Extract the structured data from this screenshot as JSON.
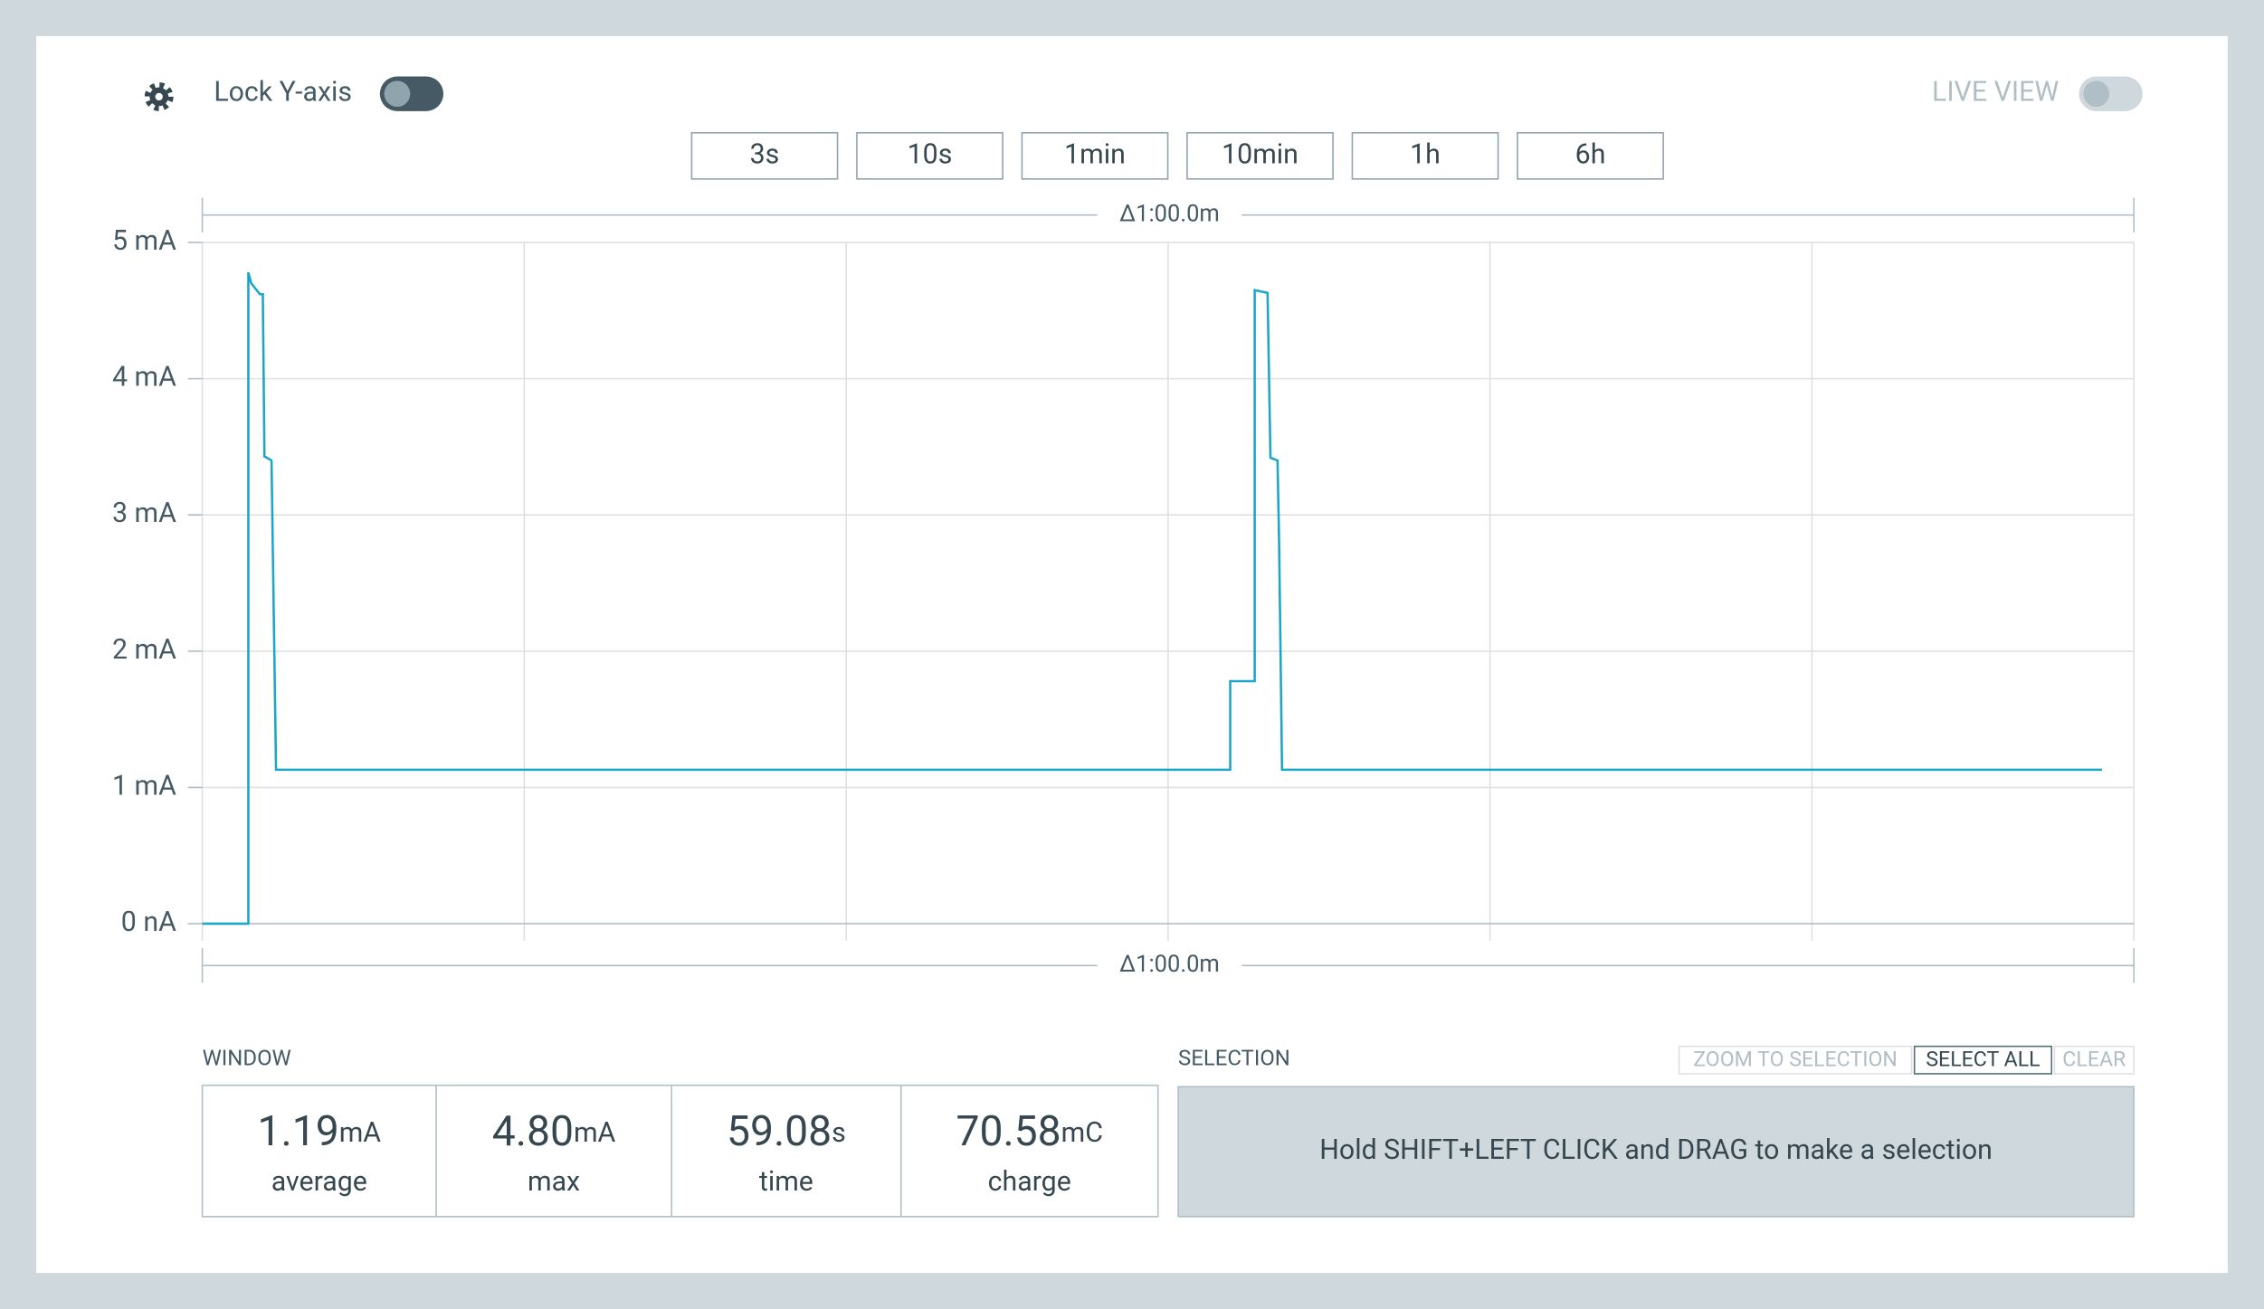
{
  "header": {
    "lock_label": "Lock Y-axis",
    "live_view_label": "LIVE VIEW",
    "range_buttons": [
      "3s",
      "10s",
      "1min",
      "10min",
      "1h",
      "6h"
    ]
  },
  "chart_data": {
    "type": "line",
    "span_label": "Δ1:00.0m",
    "x": [
      0,
      1.43,
      1.43,
      1.52,
      1.79,
      1.88,
      1.93,
      2.15,
      2.29,
      10,
      20,
      31.93,
      31.93,
      32.69,
      32.69,
      33.09,
      33.18,
      33.4,
      33.45,
      33.54,
      40,
      50,
      59.01
    ],
    "series": [
      {
        "color": "#1ba6c8",
        "values": [
          0,
          0,
          4.78,
          4.7,
          4.62,
          4.62,
          3.43,
          3.4,
          1.13,
          1.13,
          1.13,
          1.13,
          1.78,
          1.78,
          4.65,
          4.63,
          3.42,
          3.4,
          2.78,
          1.13,
          1.13,
          1.13,
          1.13
        ]
      }
    ],
    "xlim": [
      0,
      60
    ],
    "xticks": [
      0,
      10,
      20,
      30,
      40,
      50,
      60
    ],
    "ylim": [
      0,
      5
    ],
    "yticks": [
      {
        "value": 0,
        "label": "0 nA"
      },
      {
        "value": 1,
        "label": "1 mA"
      },
      {
        "value": 2,
        "label": "2 mA"
      },
      {
        "value": 3,
        "label": "3 mA"
      },
      {
        "value": 4,
        "label": "4 mA"
      },
      {
        "value": 5,
        "label": "5 mA"
      }
    ],
    "grid": true
  },
  "window": {
    "title": "WINDOW",
    "stats": [
      {
        "value": "1.19",
        "unit": "mA",
        "label": "average"
      },
      {
        "value": "4.80",
        "unit": "mA",
        "label": "max"
      },
      {
        "value": "59.08",
        "unit": "s",
        "label": "time"
      },
      {
        "value": "70.58",
        "unit": "mC",
        "label": "charge"
      }
    ]
  },
  "selection": {
    "title": "SELECTION",
    "buttons": [
      "ZOOM TO SELECTION",
      "SELECT ALL",
      "CLEAR"
    ],
    "message": "Hold SHIFT+LEFT CLICK and DRAG to make a selection"
  }
}
